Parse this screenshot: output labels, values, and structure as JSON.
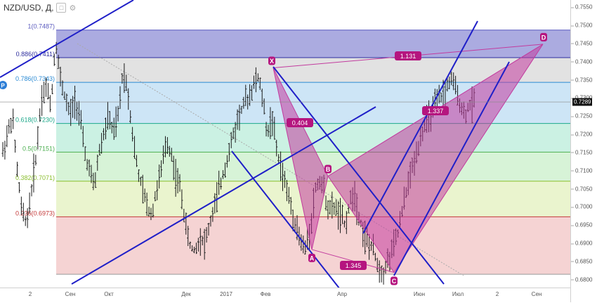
{
  "header": {
    "symbol_title": "NZD/USD, Д,",
    "icon_square": "square-icon",
    "icon_gear": "gear-icon"
  },
  "price_axis": {
    "ticks": [
      "0.7550",
      "0.7500",
      "0.7450",
      "0.7400",
      "0.7350",
      "0.7300",
      "0.7250",
      "0.7200",
      "0.7150",
      "0.7100",
      "0.7050",
      "0.7000",
      "0.6950",
      "0.6900",
      "0.6850",
      "0.6800"
    ],
    "last_price": "0.7289"
  },
  "time_axis": {
    "labels": [
      "2",
      "Сен",
      "Окт",
      "Дек",
      "2017",
      "Фев",
      "Апр",
      "Июн",
      "Июл",
      "2",
      "Сен"
    ]
  },
  "fib_levels": [
    {
      "ratio": "1",
      "price": 0.7487,
      "label": "1(0.7487)",
      "color": "#5b5bbf"
    },
    {
      "ratio": "0.886",
      "price": 0.7411,
      "label": "0.886(0.7411)",
      "color": "#2e2e9e"
    },
    {
      "ratio": "0.786",
      "price": 0.7343,
      "label": "0.786(0.7343)",
      "color": "#2a8ad4"
    },
    {
      "ratio": "0.618",
      "price": 0.723,
      "label": "0.618(0.7230)",
      "color": "#1ca88a"
    },
    {
      "ratio": "0.5",
      "price": 0.7151,
      "label": "0.5(0.7151)",
      "color": "#4caf50"
    },
    {
      "ratio": "0.382",
      "price": 0.7071,
      "label": "0.382(0.7071)",
      "color": "#8bbf2f"
    },
    {
      "ratio": "0.236",
      "price": 0.6973,
      "label": "0.236(0.6973)",
      "color": "#c43a3a"
    },
    {
      "ratio": "0",
      "price": 0.6815,
      "label": "",
      "color": "#999999"
    }
  ],
  "harmonic": {
    "points": [
      {
        "label": "X",
        "price": 0.7383
      },
      {
        "label": "A",
        "price": 0.6883
      },
      {
        "label": "B",
        "price": 0.7085
      },
      {
        "label": "C",
        "price": 0.682
      },
      {
        "label": "D",
        "price": 0.7448
      }
    ],
    "ratios": [
      {
        "label": "0.404"
      },
      {
        "label": "1.345"
      },
      {
        "label": "1.337"
      },
      {
        "label": "1.131"
      }
    ],
    "fill_color": "#c23b9e",
    "label_color": "#b5157f"
  },
  "marker_p": "P",
  "chart_data": {
    "type": "ohlc",
    "symbol": "NZD/USD",
    "timeframe": "Д",
    "ylim": [
      0.679,
      0.756
    ],
    "last_price": 0.7289,
    "fib_ratios": [
      1,
      0.886,
      0.786,
      0.618,
      0.5,
      0.382,
      0.236,
      0
    ],
    "fib_prices": [
      0.7487,
      0.7411,
      0.7343,
      0.723,
      0.7151,
      0.7071,
      0.6973,
      0.6815
    ],
    "pattern_points": {
      "X": 0.7383,
      "A": 0.6883,
      "B": 0.7085,
      "C": 0.682,
      "D": 0.7448
    },
    "pattern_ratios": {
      "XAB": 0.404,
      "ABC": 1.345,
      "BCD": 1.337,
      "XAD": 1.131
    },
    "price_path": [
      0.715,
      0.72,
      0.725,
      0.71,
      0.698,
      0.696,
      0.705,
      0.715,
      0.73,
      0.733,
      0.728,
      0.746,
      0.735,
      0.73,
      0.725,
      0.73,
      0.725,
      0.715,
      0.71,
      0.705,
      0.715,
      0.72,
      0.725,
      0.72,
      0.725,
      0.738,
      0.732,
      0.72,
      0.71,
      0.705,
      0.7,
      0.698,
      0.705,
      0.71,
      0.718,
      0.715,
      0.708,
      0.705,
      0.695,
      0.689,
      0.688,
      0.692,
      0.69,
      0.695,
      0.7,
      0.705,
      0.71,
      0.715,
      0.72,
      0.725,
      0.728,
      0.73,
      0.733,
      0.736,
      0.73,
      0.72,
      0.725,
      0.715,
      0.71,
      0.705,
      0.7,
      0.695,
      0.69,
      0.688,
      0.695,
      0.705,
      0.708,
      0.703,
      0.699,
      0.7,
      0.698,
      0.695,
      0.7,
      0.705,
      0.698,
      0.693,
      0.69,
      0.688,
      0.684,
      0.682,
      0.685,
      0.688,
      0.692,
      0.698,
      0.705,
      0.71,
      0.715,
      0.72,
      0.723,
      0.725,
      0.728,
      0.73,
      0.732,
      0.735,
      0.733,
      0.729,
      0.725,
      0.728,
      0.7289
    ]
  }
}
